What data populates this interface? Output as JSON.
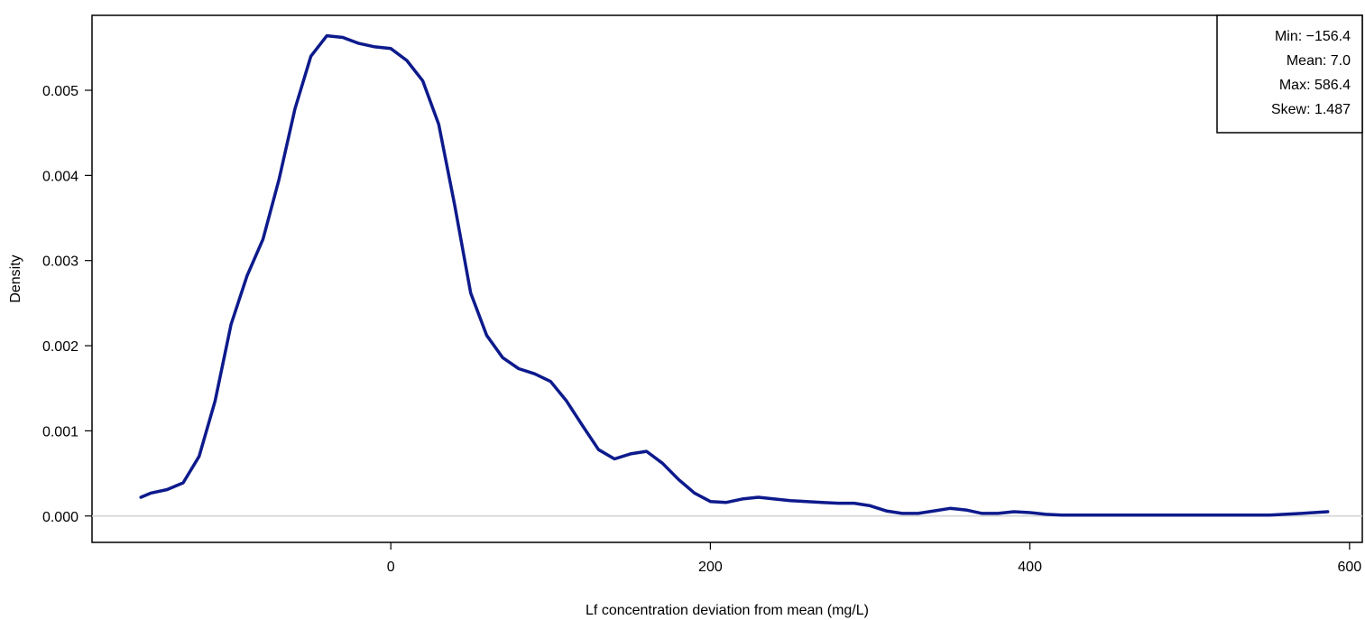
{
  "chart_data": {
    "type": "line",
    "title": "",
    "xlabel": "Lf concentration deviation from mean (mg/L)",
    "ylabel": "Density",
    "xlim": [
      -187,
      608
    ],
    "ylim": [
      -0.00031,
      0.00588
    ],
    "x_ticks": [
      {
        "value": 0,
        "label": "0"
      },
      {
        "value": 200,
        "label": "200"
      },
      {
        "value": 400,
        "label": "400"
      },
      {
        "value": 600,
        "label": "600"
      }
    ],
    "y_ticks": [
      {
        "value": 0.0,
        "label": "0.000"
      },
      {
        "value": 0.001,
        "label": "0.001"
      },
      {
        "value": 0.002,
        "label": "0.002"
      },
      {
        "value": 0.003,
        "label": "0.003"
      },
      {
        "value": 0.004,
        "label": "0.004"
      },
      {
        "value": 0.005,
        "label": "0.005"
      }
    ],
    "reference_line": {
      "y": 0,
      "color": "#d3d3d3"
    },
    "grid": false,
    "series": [
      {
        "color": "#0d1a8c",
        "x": [
          -156.4,
          -150,
          -140,
          -130,
          -120,
          -110,
          -100,
          -90,
          -80,
          -70,
          -60,
          -50,
          -40,
          -30,
          -20,
          -10,
          0,
          10,
          20,
          30,
          40,
          50,
          60,
          70,
          80,
          90,
          100,
          110,
          120,
          130,
          140,
          150,
          160,
          170,
          180,
          190,
          200,
          210,
          220,
          230,
          240,
          250,
          260,
          270,
          280,
          290,
          300,
          310,
          320,
          330,
          340,
          350,
          360,
          370,
          380,
          390,
          400,
          410,
          420,
          430,
          450,
          500,
          550,
          570,
          586.4
        ],
        "y": [
          0.00022,
          0.00027,
          0.00031,
          0.00039,
          0.0007,
          0.00135,
          0.00225,
          0.00282,
          0.00325,
          0.00395,
          0.00478,
          0.0054,
          0.00564,
          0.00562,
          0.00555,
          0.00551,
          0.00549,
          0.00535,
          0.00511,
          0.0046,
          0.00365,
          0.00262,
          0.00212,
          0.00186,
          0.00173,
          0.00167,
          0.00158,
          0.00135,
          0.00106,
          0.00078,
          0.00067,
          0.00073,
          0.00076,
          0.00062,
          0.00043,
          0.00027,
          0.00017,
          0.00016,
          0.0002,
          0.00022,
          0.0002,
          0.00018,
          0.00017,
          0.00016,
          0.00015,
          0.00015,
          0.00012,
          6e-05,
          3e-05,
          3e-05,
          6e-05,
          9e-05,
          7e-05,
          3e-05,
          3e-05,
          5e-05,
          4e-05,
          2e-05,
          1e-05,
          1e-05,
          1e-05,
          1e-05,
          1e-05,
          3e-05,
          5e-05
        ]
      }
    ],
    "legend": {
      "position": "top-right",
      "lines": [
        "Min: −156.4",
        "Mean: 7.0",
        "Max: 586.4",
        "Skew: 1.487"
      ]
    }
  }
}
